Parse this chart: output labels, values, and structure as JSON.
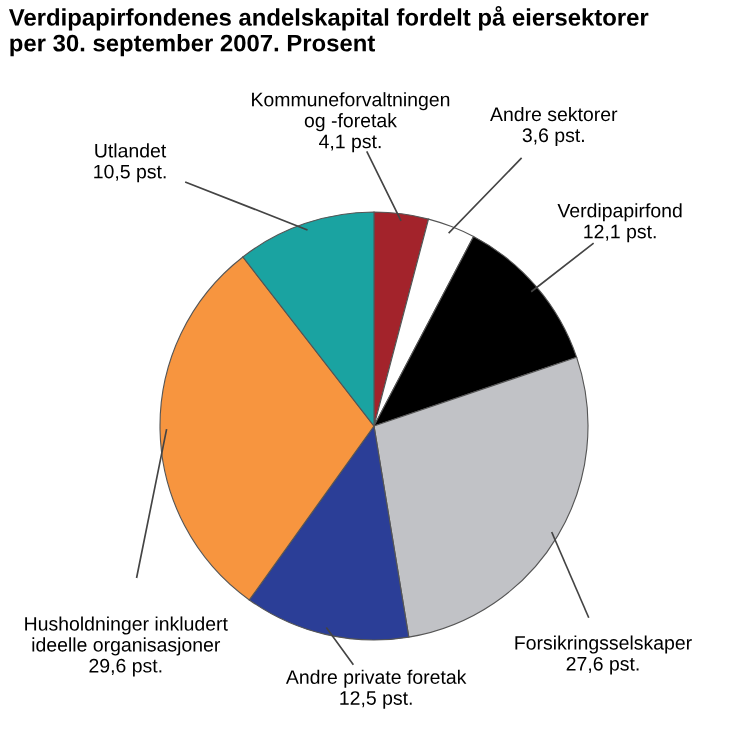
{
  "chart_data": {
    "type": "pie",
    "title": "Verdipapirfondenes andelskapital fordelt på eiersektorer\nper 30. september 2007. Prosent",
    "categories": [
      "Kommuneforvaltningen\nog -foretak",
      "Andre sektorer",
      "Verdipapirfond",
      "Forsikringsselskaper",
      "Andre private foretak",
      "Husholdninger inkludert\nideelle organisasjoner",
      "Utlandet"
    ],
    "values": [
      4.1,
      3.6,
      12.1,
      27.6,
      12.5,
      29.6,
      10.5
    ],
    "value_labels": [
      "4,1 pst.",
      "3,6 pst.",
      "12,1 pst.",
      "27,6 pst.",
      "12,5 pst.",
      "29,6 pst.",
      "10,5 pst."
    ],
    "colors": [
      "#a3232b",
      "#ffffff",
      "#000000",
      "#c1c2c6",
      "#2b3e97",
      "#f7953f",
      "#1aa3a1"
    ]
  }
}
